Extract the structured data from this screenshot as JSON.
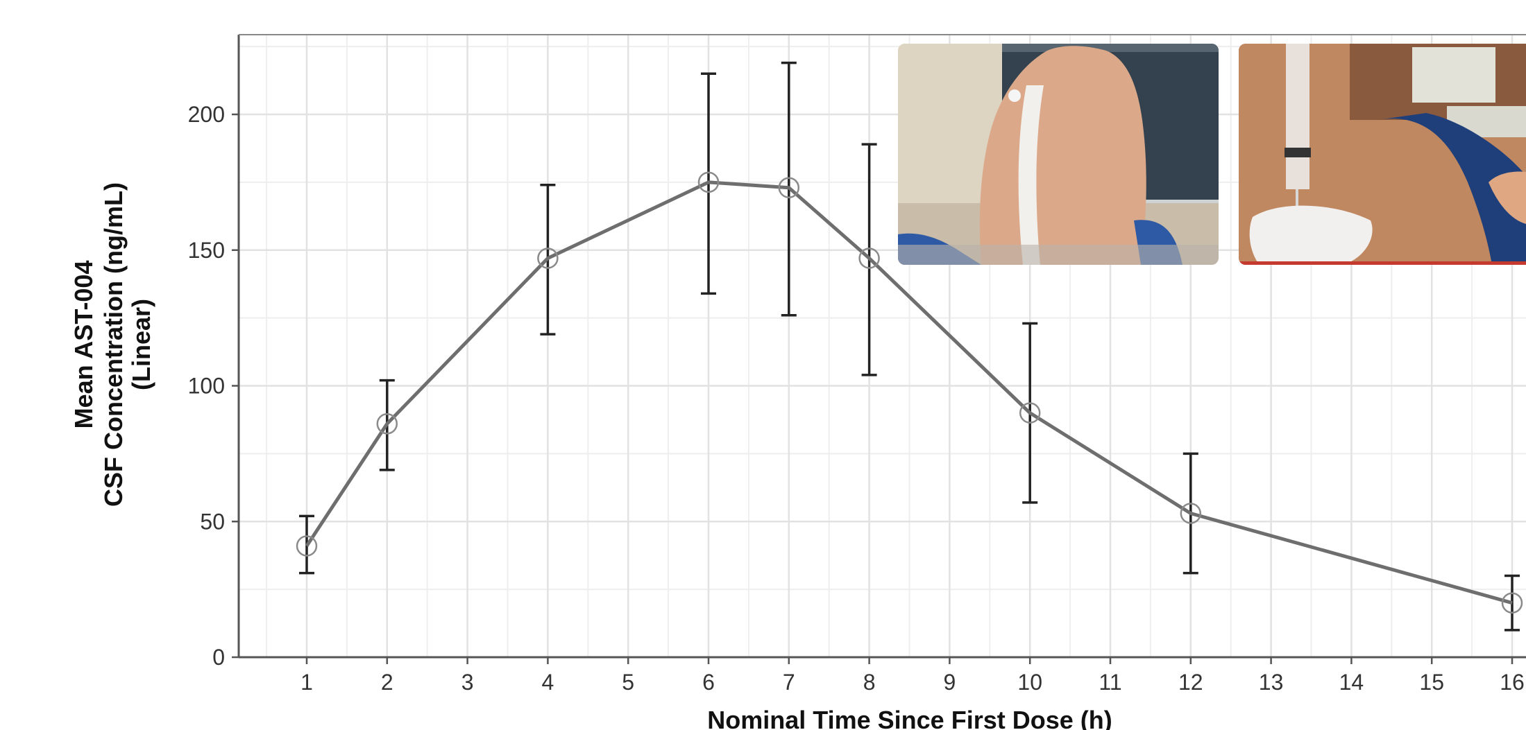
{
  "chart_data": {
    "type": "line",
    "title": "",
    "xlabel": "Nominal Time Since First Dose (h)",
    "ylabel_lines": [
      "Mean AST-004",
      "CSF Concentration (ng/mL)",
      "(Linear)"
    ],
    "xlim": [
      0.2,
      16.15
    ],
    "ylim": [
      0,
      229
    ],
    "x_ticks": [
      1,
      2,
      3,
      4,
      5,
      6,
      7,
      8,
      9,
      10,
      11,
      12,
      13,
      14,
      15,
      16
    ],
    "y_ticks": [
      0,
      50,
      100,
      150,
      200
    ],
    "grid": true,
    "series": [
      {
        "x": [
          1,
          2,
          4,
          6,
          7,
          8,
          10,
          12,
          16
        ],
        "y": [
          41,
          86,
          147,
          175,
          173,
          147,
          90,
          53,
          20
        ],
        "error_low": [
          31,
          69,
          119,
          134,
          126,
          104,
          57,
          31,
          10
        ],
        "error_high": [
          52,
          102,
          174,
          215,
          219,
          189,
          123,
          75,
          30
        ],
        "marker": "open-circle",
        "color": "#6e6e6e"
      }
    ],
    "inset_images": [
      {
        "description_icon": "photo-patient-back-icon"
      },
      {
        "description_icon": "photo-syringe-injection-icon"
      }
    ]
  }
}
